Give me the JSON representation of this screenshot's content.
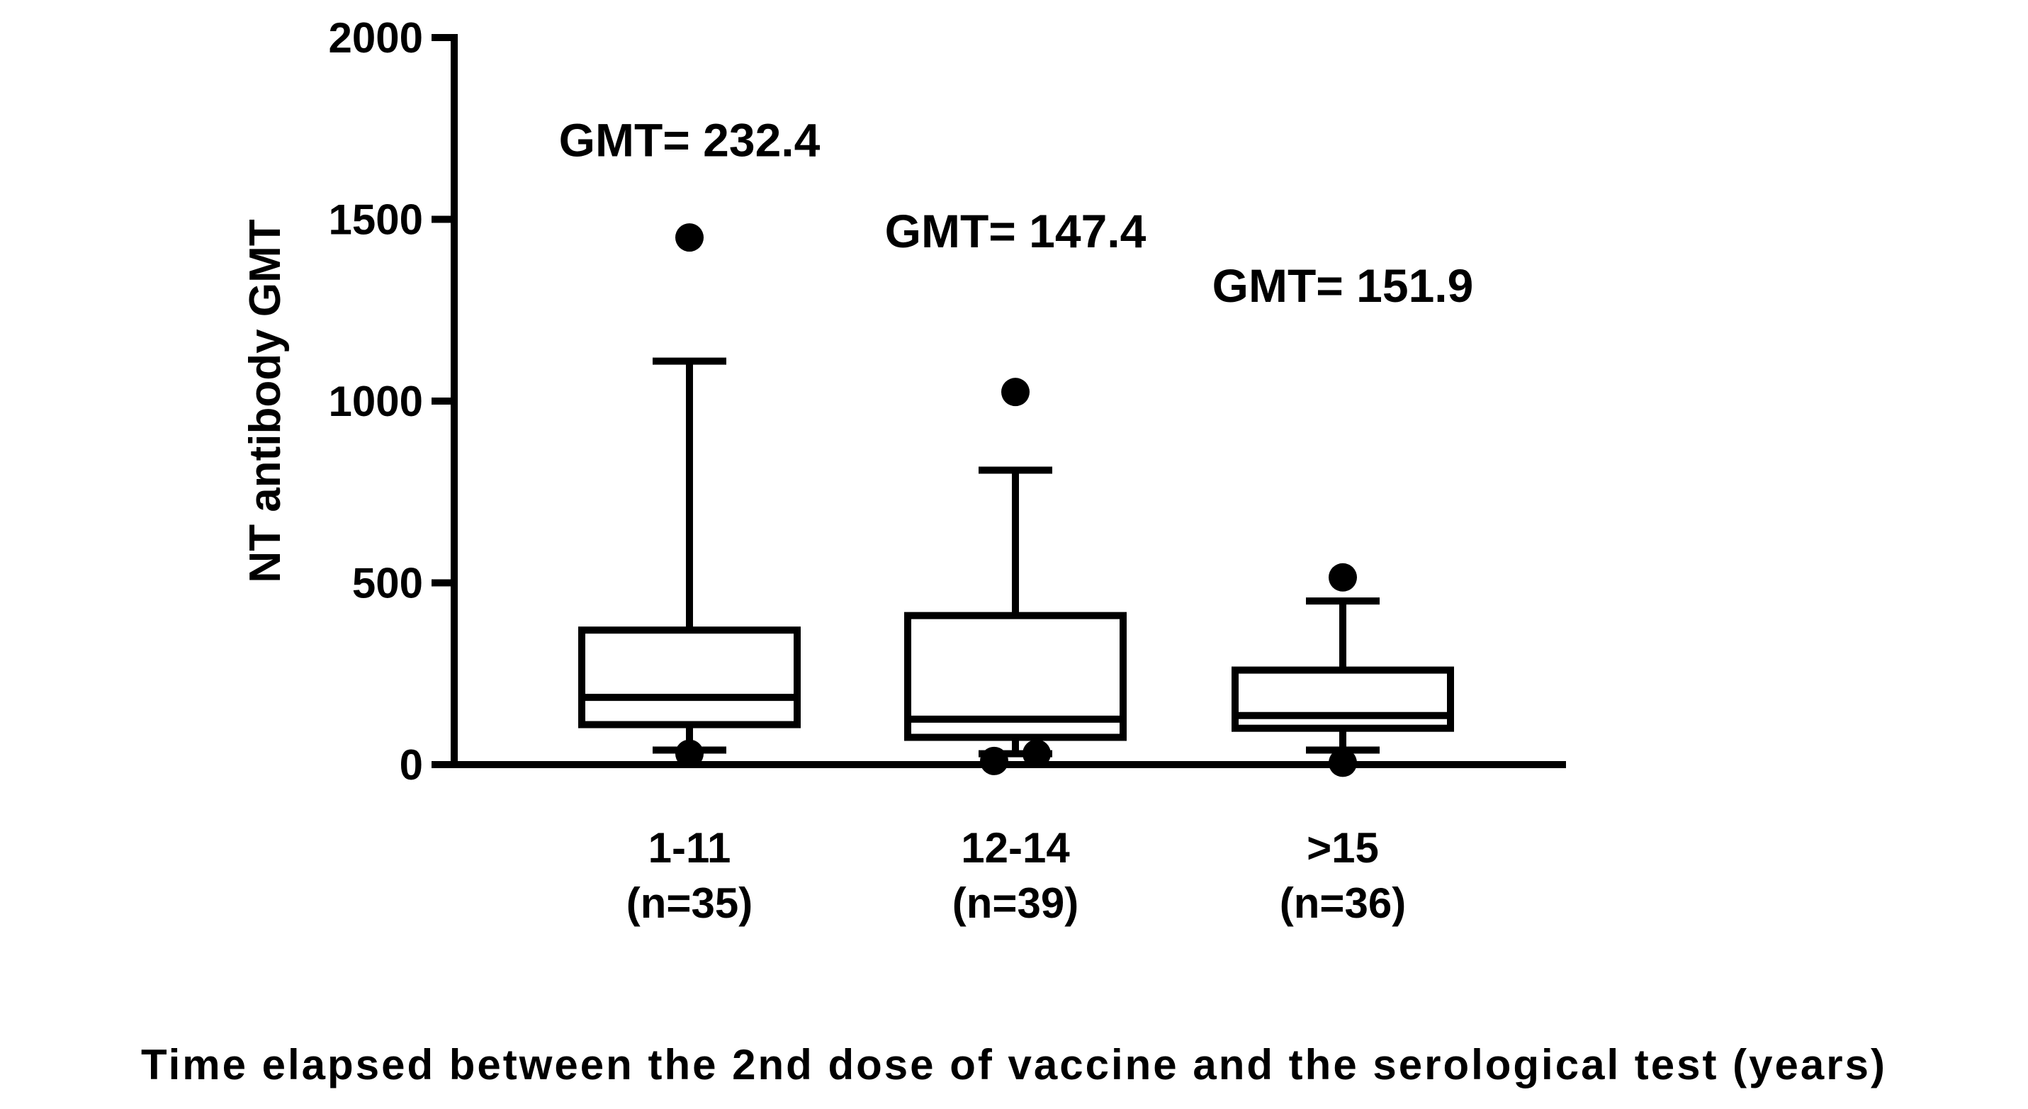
{
  "colors": {
    "ink": "#000000",
    "background": "#ffffff"
  },
  "chart_data": {
    "type": "box",
    "title": "",
    "ylabel": "NT antibody GMT",
    "xlabel": "Time elapsed between the 2nd dose of vaccine and the serological test (years)",
    "ylim": [
      0,
      2000
    ],
    "yticks": [
      0,
      500,
      1000,
      1500,
      2000
    ],
    "ytick_labels": [
      "0",
      "500",
      "1000",
      "1500",
      "2000"
    ],
    "categories": [
      {
        "label": "1-11",
        "n_label": "(n=35)"
      },
      {
        "label": "12-14",
        "n_label": "(n=39)"
      },
      {
        "label": ">15",
        "n_label": "(n=36)"
      }
    ],
    "boxes": [
      {
        "whisker_low": 40,
        "q1": 110,
        "median": 185,
        "q3": 370,
        "whisker_high": 1110,
        "outliers": [
          1450,
          30
        ]
      },
      {
        "whisker_low": 30,
        "q1": 75,
        "median": 125,
        "q3": 410,
        "whisker_high": 810,
        "outliers": [
          1025,
          10,
          30
        ]
      },
      {
        "whisker_low": 40,
        "q1": 100,
        "median": 135,
        "q3": 260,
        "whisker_high": 450,
        "outliers": [
          515,
          5
        ]
      }
    ],
    "annotations": [
      {
        "text": "GMT= 232.4",
        "category": 0,
        "value": 1720
      },
      {
        "text": "GMT= 147.4",
        "category": 1,
        "value": 1470
      },
      {
        "text": "GMT= 151.9",
        "category": 2,
        "value": 1320
      }
    ],
    "grid": false,
    "legend": "none"
  }
}
